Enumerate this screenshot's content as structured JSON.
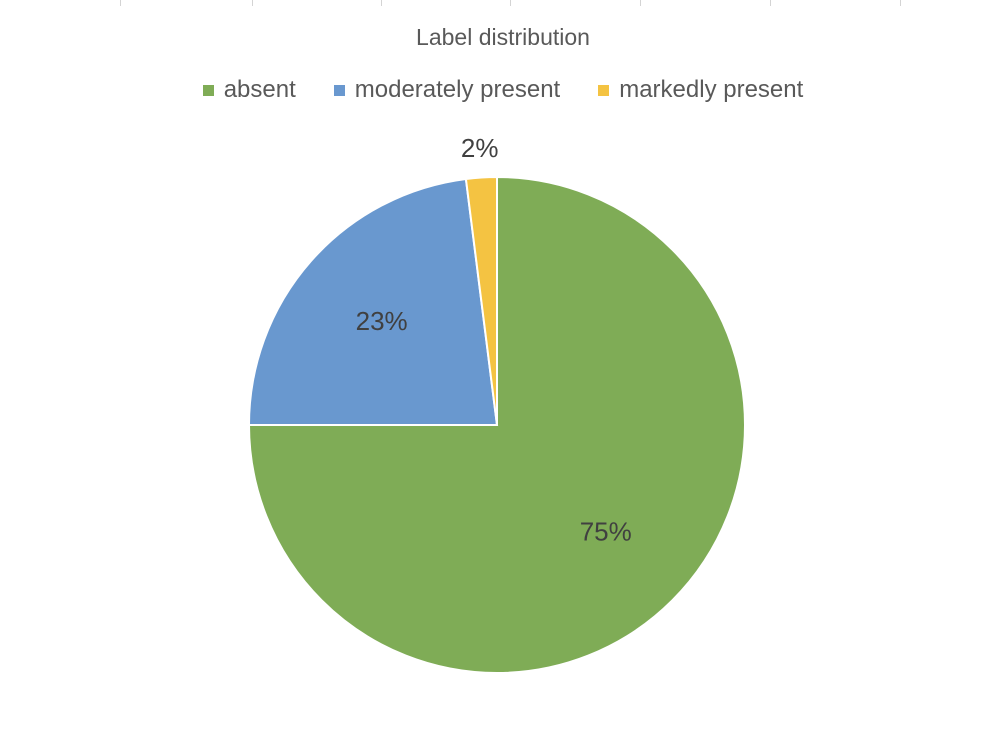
{
  "chart_data": {
    "type": "pie",
    "title": "Label distribution",
    "legend_position": "top",
    "categories": [
      "absent",
      "moderately present",
      "markedly present"
    ],
    "values": [
      75,
      23,
      2
    ],
    "data_labels": [
      "75%",
      "23%",
      "2%"
    ],
    "colors": [
      "#7fac56",
      "#6998cf",
      "#f4c342"
    ],
    "start_angle": "12 o'clock, clockwise"
  }
}
